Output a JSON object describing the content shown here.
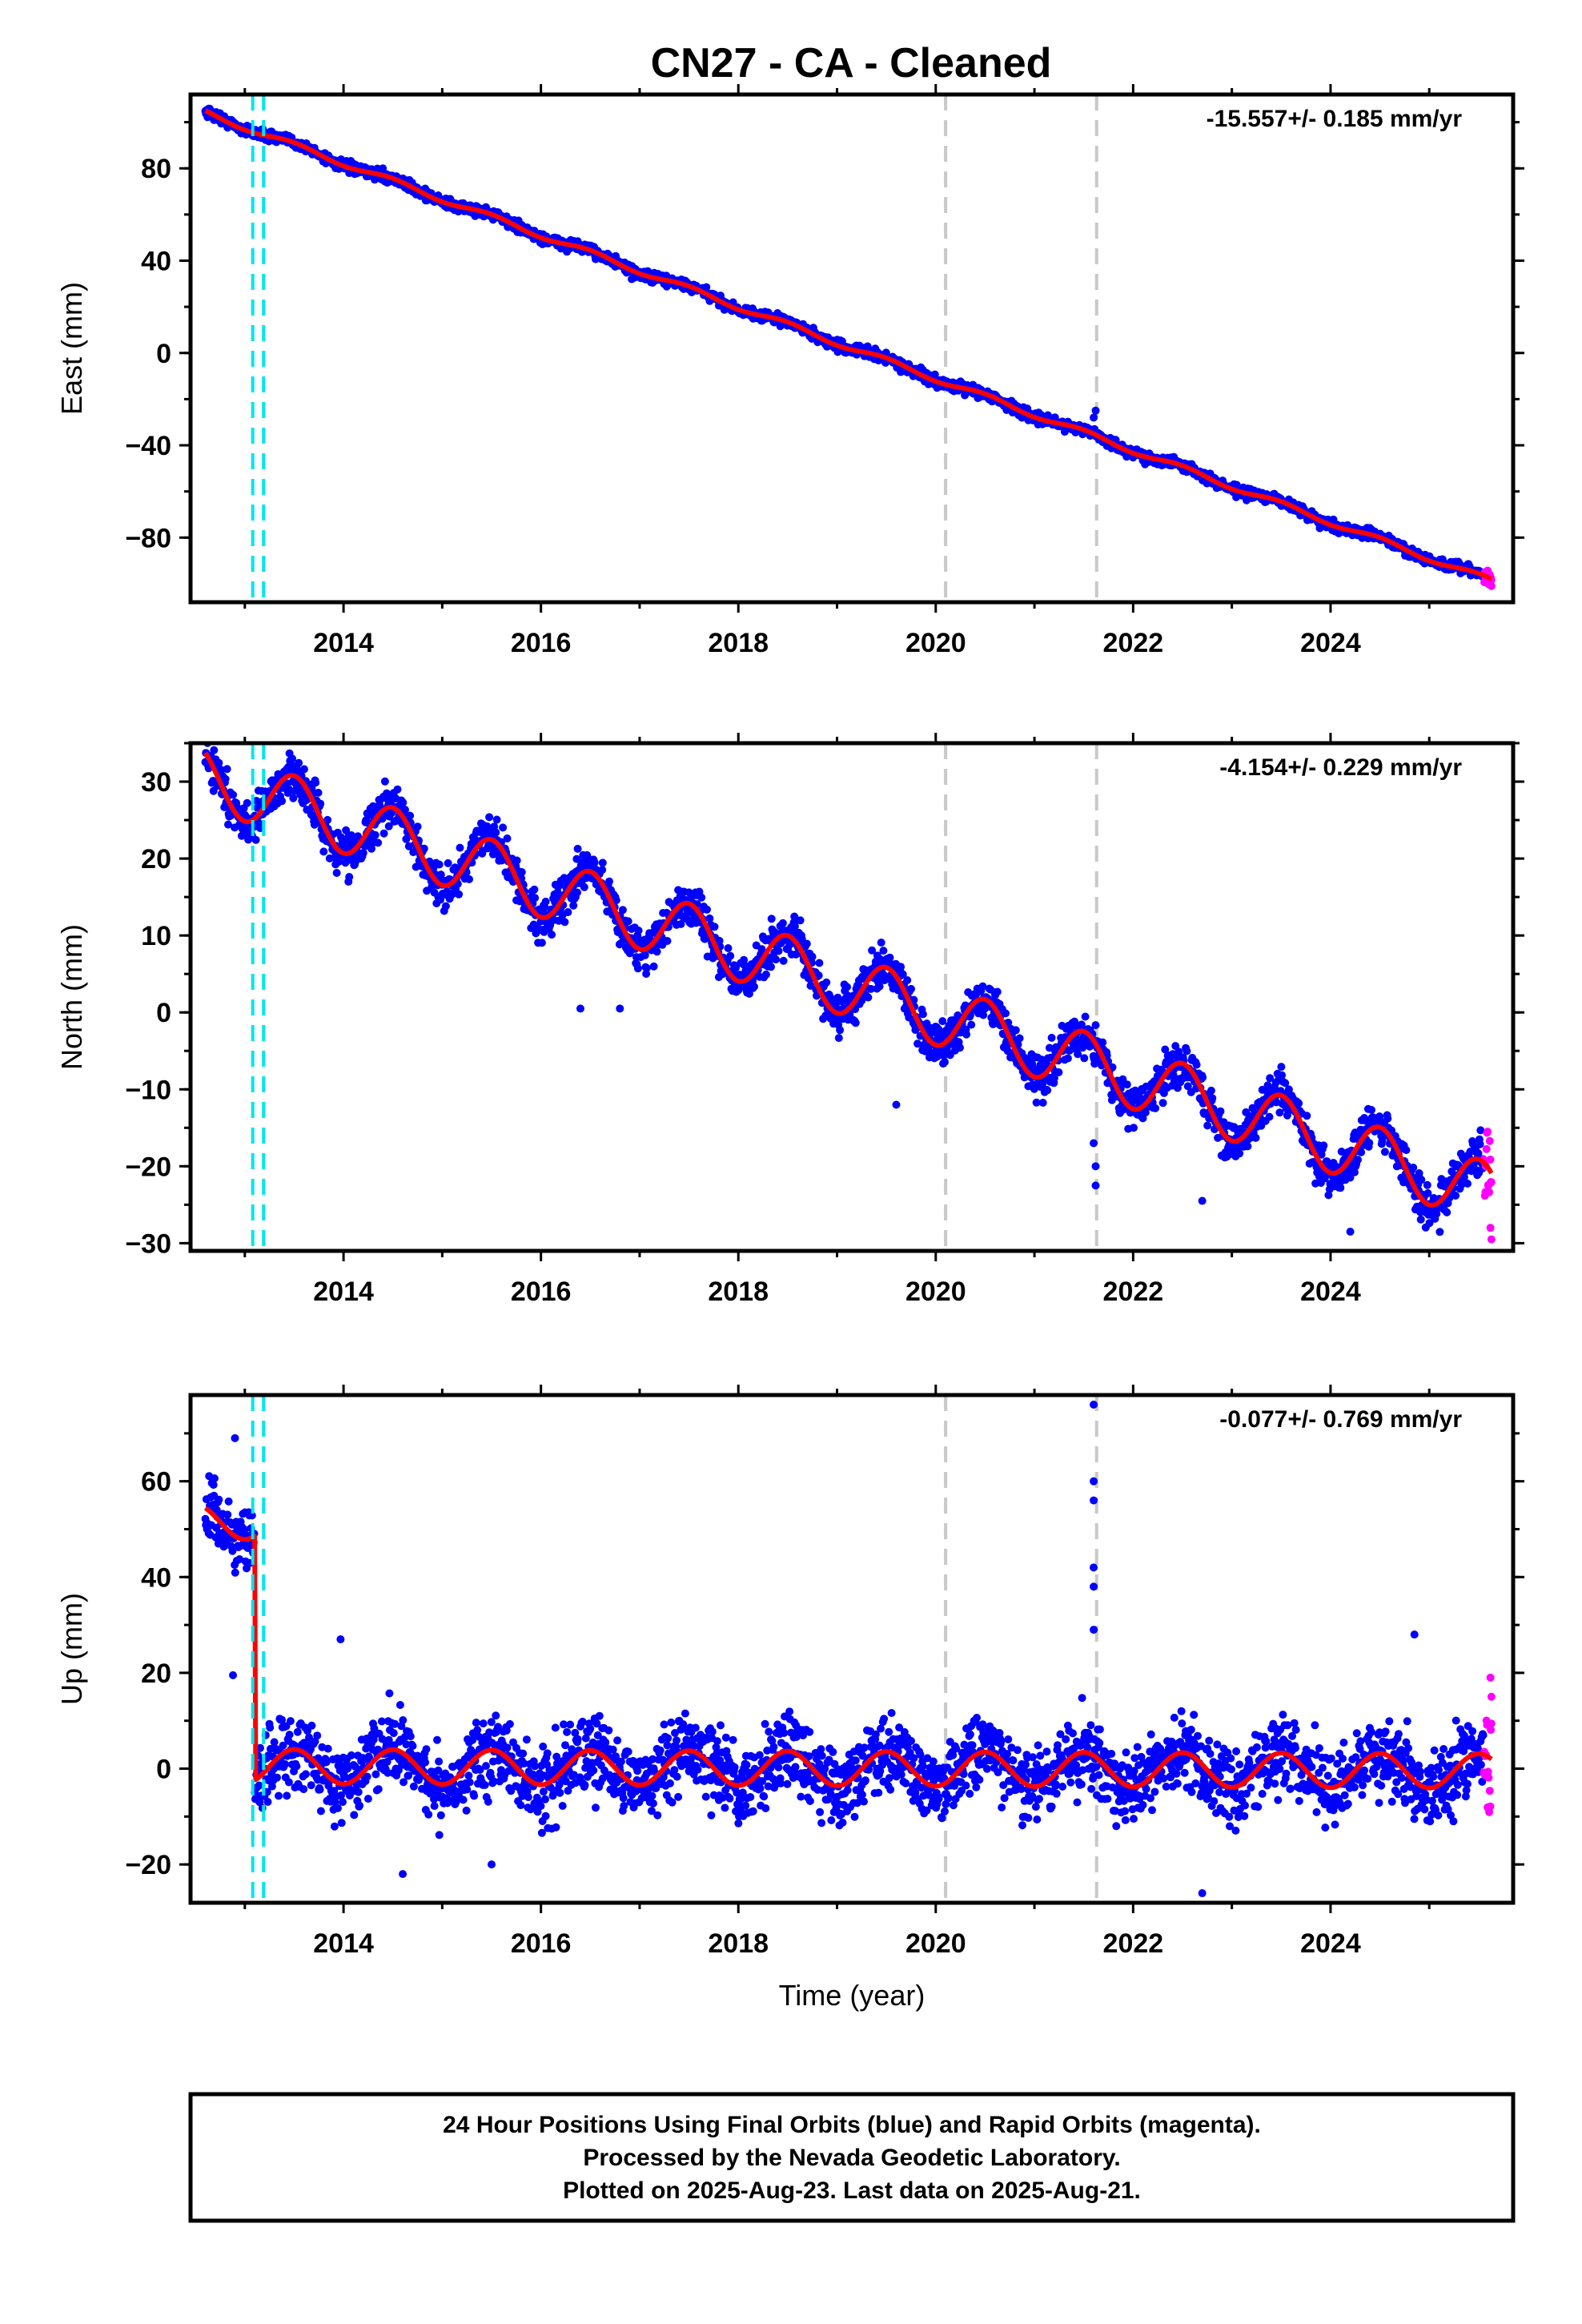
{
  "title": "CN27  - CA - Cleaned",
  "colors": {
    "final_orbits": "#0000ff",
    "rapid_orbits": "#ff00ff",
    "model": "#ff0000",
    "equipment_change": "#00e5ee",
    "event_line": "#c8c8c8"
  },
  "chart_data": [
    {
      "type": "scatter",
      "ylabel": "East (mm)",
      "xlabel": "",
      "rate_label": "-15.557+/- 0.185 mm/yr",
      "xlim": [
        2012.45,
        2025.85
      ],
      "ylim": [
        -108,
        112
      ],
      "xticks": [
        "2014",
        "2016",
        "2018",
        "2020",
        "2022",
        "2024"
      ],
      "yticks": [
        "80",
        "40",
        "0",
        "−40",
        "−80"
      ],
      "ytick_values": [
        80,
        40,
        0,
        -40,
        -80
      ],
      "trend": {
        "start_year": 2012.6,
        "start_value": 104,
        "rate_mm_per_year": -15.557
      },
      "seasonal_amplitude": 1.2,
      "scatter_spread": 1.6,
      "data_start": 2012.6,
      "data_end": 2025.63,
      "rapid_start": 2025.55,
      "offsets": [],
      "outliers": [
        {
          "x": 2021.62,
          "y": -25
        },
        {
          "x": 2021.6,
          "y": -28
        },
        {
          "x": 2016.92,
          "y": 32
        },
        {
          "x": 2025.63,
          "y": -101
        },
        {
          "x": 2025.62,
          "y": -99
        }
      ]
    },
    {
      "type": "scatter",
      "ylabel": "North (mm)",
      "xlabel": "",
      "rate_label": "-4.154+/- 0.229 mm/yr",
      "xlim": [
        2012.45,
        2025.85
      ],
      "ylim": [
        -31,
        35
      ],
      "xticks": [
        "2014",
        "2016",
        "2018",
        "2020",
        "2022",
        "2024"
      ],
      "yticks": [
        "30",
        "20",
        "10",
        "0",
        "−10",
        "−20",
        "−30"
      ],
      "ytick_values": [
        30,
        20,
        10,
        0,
        -10,
        -20,
        -30
      ],
      "trend": {
        "start_year": 2012.6,
        "start_value": 30.5,
        "rate_mm_per_year": -4.154
      },
      "seasonal_amplitude": 4.0,
      "scatter_spread": 1.9,
      "data_start": 2012.6,
      "data_end": 2025.63,
      "rapid_start": 2025.55,
      "offsets": [],
      "outliers": [
        {
          "x": 2021.62,
          "y": -22.5
        },
        {
          "x": 2021.62,
          "y": -20
        },
        {
          "x": 2021.6,
          "y": -17
        },
        {
          "x": 2016.4,
          "y": 0.5
        },
        {
          "x": 2016.8,
          "y": 0.5
        },
        {
          "x": 2014.05,
          "y": 17
        },
        {
          "x": 2019.6,
          "y": -12
        },
        {
          "x": 2022.7,
          "y": -24.5
        },
        {
          "x": 2024.2,
          "y": -28.5
        },
        {
          "x": 2025.63,
          "y": -29.5
        },
        {
          "x": 2025.62,
          "y": -28
        }
      ]
    },
    {
      "type": "scatter",
      "ylabel": "Up (mm)",
      "xlabel": "Time (year)",
      "rate_label": "-0.077+/- 0.769 mm/yr",
      "xlim": [
        2012.45,
        2025.85
      ],
      "ylim": [
        -28,
        78
      ],
      "xticks": [
        "2014",
        "2016",
        "2018",
        "2020",
        "2022",
        "2024"
      ],
      "yticks": [
        "60",
        "40",
        "20",
        "0",
        "−20"
      ],
      "ytick_values": [
        60,
        40,
        20,
        0,
        -20
      ],
      "trend": {
        "start_year": 2012.6,
        "start_value": 0.5,
        "rate_mm_per_year": -0.077
      },
      "seasonal_amplitude": 3.6,
      "scatter_spread": 5.5,
      "data_start": 2012.6,
      "data_end": 2025.63,
      "rapid_start": 2025.55,
      "offsets": [
        {
          "before_year": 2013.1,
          "value": 51
        }
      ],
      "outliers": [
        {
          "x": 2021.6,
          "y": 76
        },
        {
          "x": 2021.6,
          "y": 60
        },
        {
          "x": 2021.6,
          "y": 56
        },
        {
          "x": 2021.6,
          "y": 42
        },
        {
          "x": 2021.6,
          "y": 38
        },
        {
          "x": 2021.6,
          "y": 29
        },
        {
          "x": 2022.7,
          "y": -26
        },
        {
          "x": 2015.5,
          "y": -20
        },
        {
          "x": 2014.6,
          "y": -22
        },
        {
          "x": 2025.62,
          "y": 19
        },
        {
          "x": 2025.63,
          "y": 15
        },
        {
          "x": 2024.85,
          "y": 28
        },
        {
          "x": 2013.97,
          "y": 27
        },
        {
          "x": 2012.9,
          "y": 69
        },
        {
          "x": 2012.88,
          "y": 19.5
        }
      ]
    }
  ],
  "vertical_lines": {
    "equipment_change": [
      2013.08,
      2013.19
    ],
    "events": [
      2020.1,
      2021.63
    ]
  },
  "footer": {
    "line1": "24 Hour Positions Using Final Orbits (blue) and Rapid Orbits (magenta).",
    "line2": "Processed by the Nevada Geodetic Laboratory.",
    "line3": "Plotted on 2025-Aug-23. Last data on 2025-Aug-21."
  }
}
